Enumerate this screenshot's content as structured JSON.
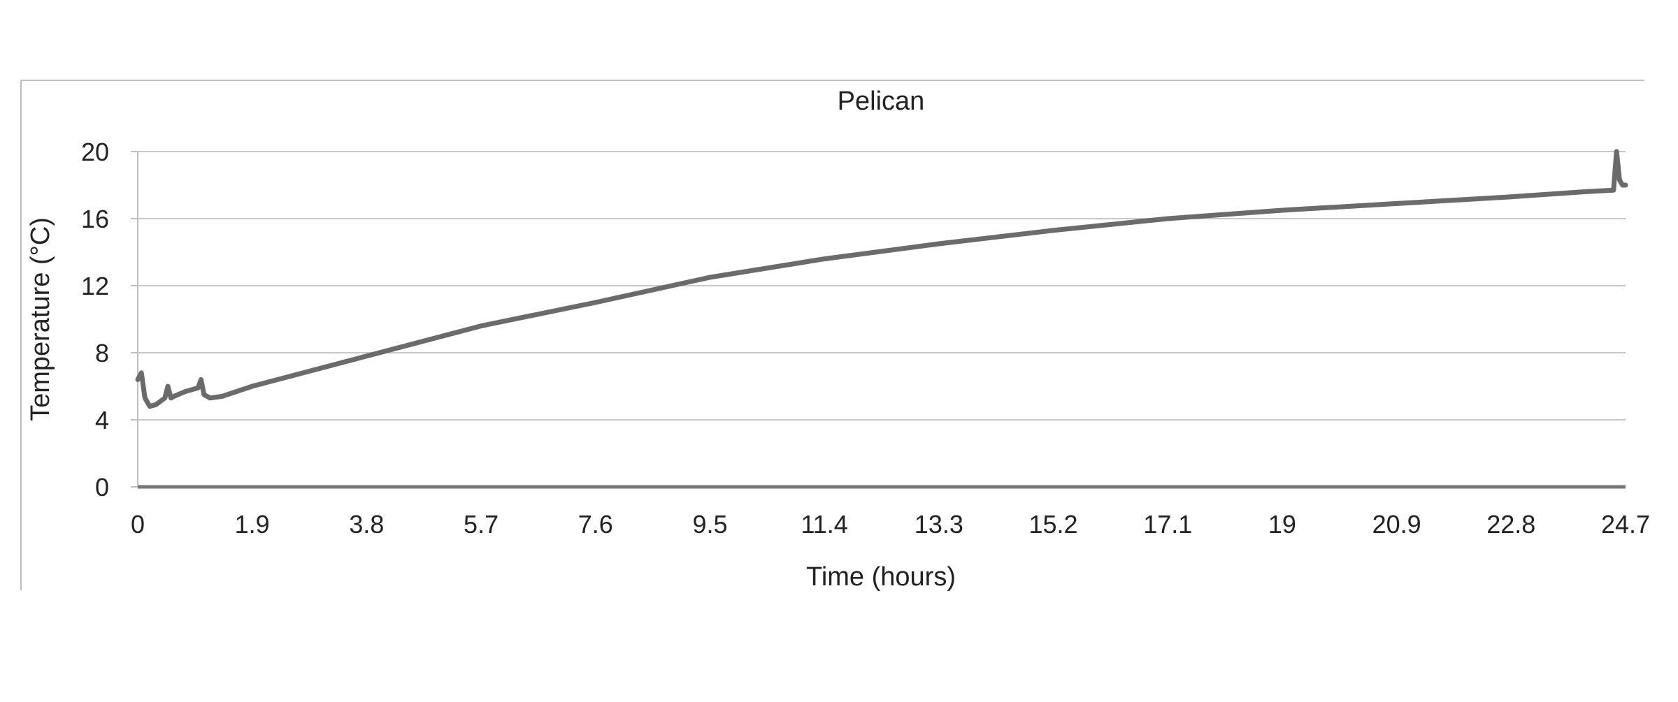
{
  "chart_data": {
    "type": "line",
    "title": "Pelican",
    "xlabel": "Time (hours)",
    "ylabel": "Temperature (°C)",
    "xlim": [
      0,
      24.7
    ],
    "ylim": [
      0,
      20
    ],
    "x_ticks": [
      "0",
      "1.9",
      "3.8",
      "5.7",
      "7.6",
      "9.5",
      "11.4",
      "13.3",
      "15.2",
      "17.1",
      "19",
      "20.9",
      "22.8",
      "24.7"
    ],
    "y_ticks": [
      "0",
      "4",
      "8",
      "12",
      "16",
      "20"
    ],
    "grid": "horizontal",
    "legend": "none",
    "series": [
      {
        "color": "#6b6b6b",
        "x": [
          0,
          0.06,
          0.12,
          0.2,
          0.3,
          0.45,
          0.5,
          0.55,
          0.6,
          0.8,
          1.0,
          1.05,
          1.1,
          1.2,
          1.4,
          1.9,
          3.8,
          5.7,
          7.6,
          9.5,
          11.4,
          13.3,
          15.2,
          17.1,
          19,
          20.9,
          22.8,
          24.0,
          24.5,
          24.55,
          24.6,
          24.65,
          24.7
        ],
        "y": [
          6.4,
          6.8,
          5.3,
          4.8,
          4.9,
          5.3,
          6.0,
          5.3,
          5.4,
          5.7,
          5.9,
          6.4,
          5.5,
          5.3,
          5.4,
          6.0,
          7.8,
          9.6,
          11.0,
          12.5,
          13.6,
          14.5,
          15.3,
          16.0,
          16.5,
          16.9,
          17.3,
          17.6,
          17.7,
          20.0,
          18.3,
          18.0,
          18.0
        ]
      }
    ]
  }
}
